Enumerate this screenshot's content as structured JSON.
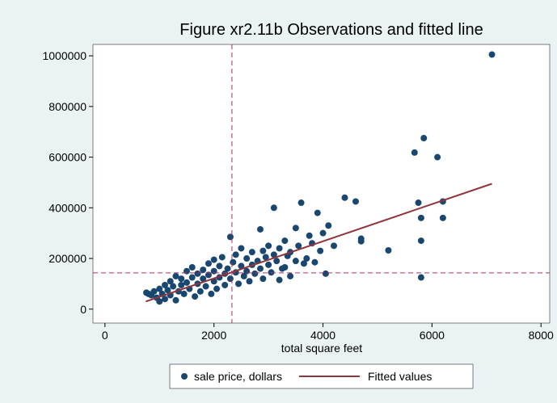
{
  "chart_data": {
    "type": "scatter",
    "title": "Figure xr2.11b Observations and fitted line",
    "x_label": "total square feet",
    "xlim": [
      -220,
      8160
    ],
    "ylim": [
      -55000,
      1045000
    ],
    "xticks": [
      0,
      2000,
      4000,
      6000,
      8000
    ],
    "yticks": [
      0,
      200000,
      400000,
      600000,
      800000,
      1000000
    ],
    "xline": 2330,
    "yline": 143000,
    "series": [
      {
        "name": "sale price, dollars",
        "type": "scatter",
        "color": "#1a476f",
        "x": [
          760,
          800,
          850,
          900,
          950,
          1000,
          1000,
          1050,
          1100,
          1100,
          1150,
          1200,
          1200,
          1250,
          1300,
          1300,
          1350,
          1400,
          1400,
          1450,
          1500,
          1500,
          1550,
          1600,
          1600,
          1650,
          1700,
          1700,
          1750,
          1800,
          1800,
          1850,
          1900,
          1900,
          1950,
          2000,
          2000,
          2000,
          2050,
          2100,
          2100,
          2150,
          2200,
          2200,
          2250,
          2300,
          2300,
          2350,
          2400,
          2400,
          2450,
          2500,
          2500,
          2550,
          2600,
          2600,
          2650,
          2700,
          2700,
          2750,
          2800,
          2850,
          2850,
          2900,
          2900,
          2950,
          3000,
          3000,
          3050,
          3100,
          3100,
          3150,
          3200,
          3200,
          3250,
          3300,
          3300,
          3350,
          3400,
          3400,
          3500,
          3500,
          3550,
          3600,
          3650,
          3700,
          3750,
          3800,
          3850,
          3900,
          3950,
          4000,
          4050,
          4100,
          4200,
          4400,
          4600,
          4700,
          4700,
          5200,
          5680,
          5750,
          5800,
          5800,
          5800,
          5850,
          6100,
          6200,
          6200,
          7100
        ],
        "values": [
          65000,
          60000,
          55000,
          70000,
          45000,
          30000,
          80000,
          60000,
          95000,
          40000,
          75000,
          110000,
          55000,
          90000,
          130000,
          35000,
          70000,
          120000,
          95000,
          60000,
          150000,
          105000,
          80000,
          165000,
          125000,
          50000,
          140000,
          100000,
          70000,
          155000,
          120000,
          90000,
          180000,
          135000,
          60000,
          195000,
          150000,
          110000,
          80000,
          170000,
          125000,
          205000,
          140000,
          95000,
          160000,
          285000,
          120000,
          185000,
          145000,
          215000,
          100000,
          240000,
          170000,
          130000,
          200000,
          150000,
          110000,
          225000,
          175000,
          140000,
          190000,
          315000,
          160000,
          230000,
          120000,
          205000,
          250000,
          175000,
          145000,
          400000,
          215000,
          190000,
          115000,
          240000,
          160000,
          165000,
          270000,
          210000,
          225000,
          130000,
          320000,
          190000,
          250000,
          420000,
          180000,
          200000,
          290000,
          260000,
          185000,
          380000,
          230000,
          300000,
          140000,
          330000,
          250000,
          440000,
          425000,
          268000,
          278000,
          232000,
          618000,
          420000,
          360000,
          270000,
          125000,
          675000,
          600000,
          425000,
          360000,
          1005000
        ]
      },
      {
        "name": "Fitted values",
        "type": "line",
        "color": "#90353b",
        "x": [
          750,
          7100
        ],
        "values": [
          30000,
          495000
        ]
      }
    ]
  }
}
